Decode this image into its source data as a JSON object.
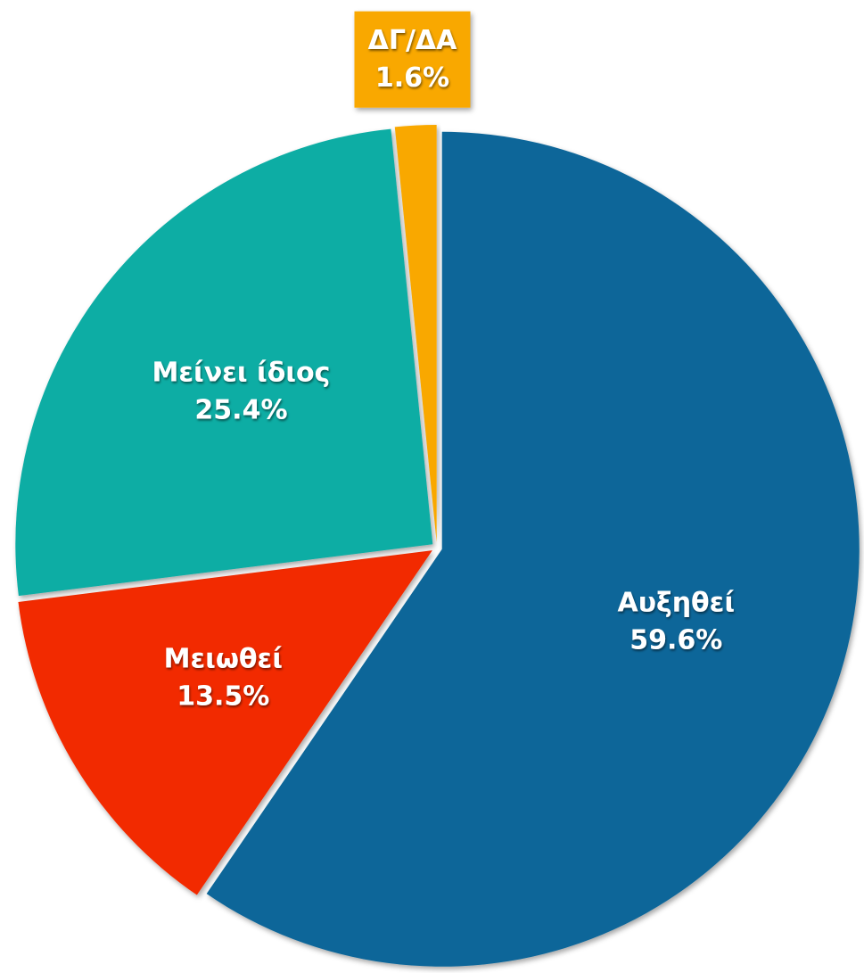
{
  "chart_data": {
    "type": "pie",
    "categories": [
      "Αυξηθεί",
      "Μειωθεί",
      "Μείνει ίδιος",
      "ΔΓ/ΔΑ"
    ],
    "values": [
      59.6,
      13.5,
      25.4,
      1.6
    ],
    "value_labels": [
      "59.6%",
      "13.5%",
      "25.4%",
      "1.6%"
    ],
    "colors": [
      "#0c6699",
      "#f22c02",
      "#0fada4",
      "#f9a800"
    ]
  }
}
